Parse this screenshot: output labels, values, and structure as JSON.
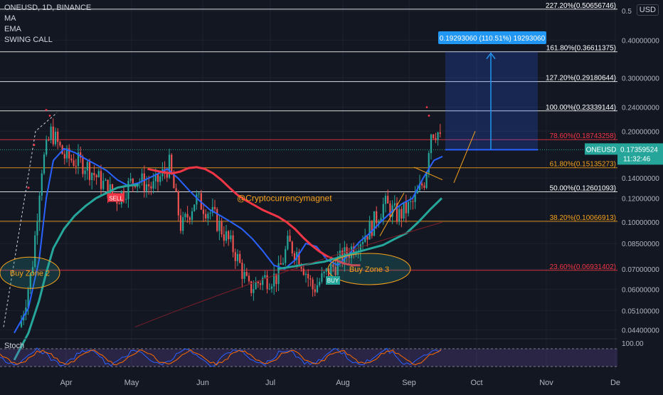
{
  "legend": {
    "symbol_line": "ONEUSD, 1D, BINANCE",
    "indicators": [
      "MA",
      "EMA",
      "SWING CALL"
    ]
  },
  "currency_badge": "USD",
  "stoch_label": "Stoch",
  "stoch_scale_label": "100.00",
  "watermark": "@Cryptocurrencymagnet",
  "measure_label": "0.19293060 (110.51%) 19293060",
  "price_badge": {
    "symbol": "ONEUSD",
    "price": "0.17359524",
    "countdown": "11:32:46"
  },
  "chart_data": {
    "type": "line",
    "title": "ONEUSD, 1D, BINANCE",
    "xlabel": "",
    "ylabel": "",
    "yscale": "log",
    "ylim": [
      0.04,
      0.5
    ],
    "x_ticks": [
      "Apr",
      "May",
      "Jun",
      "Jul",
      "Aug",
      "Sep",
      "Oct",
      "Nov",
      "De"
    ],
    "y_ticks": [
      {
        "value": 0.5,
        "label": "0.5"
      },
      {
        "value": 0.4,
        "label": "0.40000000"
      },
      {
        "value": 0.3,
        "label": "0.30000000"
      },
      {
        "value": 0.24,
        "label": "0.24000000"
      },
      {
        "value": 0.2,
        "label": "0.20000000"
      },
      {
        "value": 0.14,
        "label": "0.14000000"
      },
      {
        "value": 0.12,
        "label": "0.12000000"
      },
      {
        "value": 0.1,
        "label": "0.10000000"
      },
      {
        "value": 0.085,
        "label": "0.08500000"
      },
      {
        "value": 0.07,
        "label": "0.07000000"
      },
      {
        "value": 0.06,
        "label": "0.06000000"
      },
      {
        "value": 0.051,
        "label": "0.05100000"
      },
      {
        "value": 0.044,
        "label": "0.04400000"
      }
    ],
    "fib_levels": [
      {
        "label": "227.20%(0.50656746)",
        "value": 0.50656746,
        "color": "#ffffff"
      },
      {
        "label": "161.80%(0.36611375)",
        "value": 0.36611375,
        "color": "#ffffff"
      },
      {
        "label": "127.20%(0.29180644)",
        "value": 0.29180644,
        "color": "#ffffff"
      },
      {
        "label": "100.00%(0.23339144)",
        "value": 0.23339144,
        "color": "#ffffff"
      },
      {
        "label": "78.60%(0.18743258)",
        "value": 0.18743258,
        "color": "#f23645"
      },
      {
        "label": "61.80%(0.15135273)",
        "value": 0.15135273,
        "color": "#f7a21b"
      },
      {
        "label": "50.00%(0.12601093)",
        "value": 0.12601093,
        "color": "#ffffff"
      },
      {
        "label": "38.20%(0.10066913)",
        "value": 0.10066913,
        "color": "#f7a21b"
      },
      {
        "label": "23.60%(0.06931402)",
        "value": 0.06931402,
        "color": "#f23645"
      }
    ],
    "current_price": 0.17359524,
    "zones": [
      "Buy Zone 2",
      "Buy Zone 3"
    ],
    "signals": [
      "SELL",
      "BUY"
    ],
    "series": [
      {
        "color": "#2962ff",
        "values": [
          0.043,
          0.052,
          0.075,
          0.12,
          0.16,
          0.175,
          0.17,
          0.162,
          0.155,
          0.148,
          0.138,
          0.132,
          0.135,
          0.142,
          0.15,
          0.14,
          0.128,
          0.118,
          0.11,
          0.105,
          0.1,
          0.095,
          0.088,
          0.08,
          0.072,
          0.07,
          0.075,
          0.085,
          0.083,
          0.075,
          0.072,
          0.078,
          0.086,
          0.092,
          0.1,
          0.108,
          0.115,
          0.12,
          0.14,
          0.16,
          0.165
        ]
      },
      {
        "color": "#f23645",
        "values": [
          null,
          null,
          null,
          null,
          null,
          0.15,
          0.148,
          0.146,
          0.145,
          0.147,
          0.151,
          0.152,
          0.15,
          0.145,
          0.138,
          0.13,
          0.123,
          0.118,
          0.114,
          0.11,
          0.107,
          0.104,
          0.1,
          0.095,
          0.089,
          0.084,
          0.08,
          0.077,
          0.075,
          0.073,
          0.072,
          0.072
        ]
      },
      {
        "color": "#26a69a",
        "values": [
          0.035,
          0.043,
          0.055,
          0.068,
          0.082,
          0.095,
          0.105,
          0.113,
          0.12,
          0.125,
          0.13,
          0.132,
          0.133,
          null,
          null,
          null,
          null,
          null,
          null,
          null,
          null,
          null,
          null,
          null,
          null,
          null,
          0.07,
          0.071,
          0.072,
          0.073,
          0.074,
          0.076,
          0.078,
          0.08,
          0.082,
          0.084,
          0.088,
          0.092,
          0.1,
          0.11,
          0.12
        ]
      }
    ]
  }
}
